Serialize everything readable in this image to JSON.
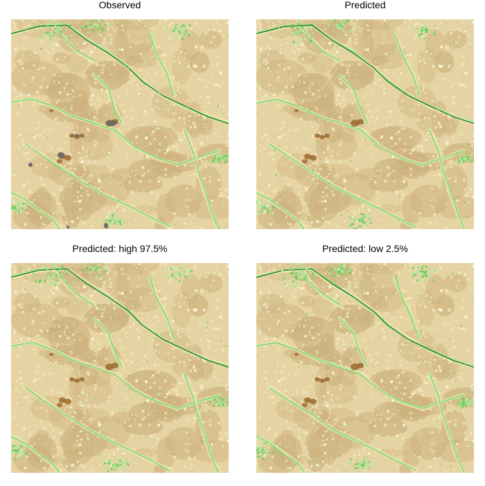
{
  "panels": [
    {
      "title": "Observed",
      "show_gray_patches": true
    },
    {
      "title": "Predicted",
      "show_gray_patches": false
    },
    {
      "title": "Predicted: high 97.5%",
      "show_gray_patches": false
    },
    {
      "title": "Predicted: low 2.5%",
      "show_gray_patches": false
    }
  ],
  "palette": {
    "tan_light": "#f3e8b8",
    "tan_mid": "#e6d3a3",
    "tan_dark": "#cdb27e",
    "brown_spot": "#9a6a2e",
    "green_light": "#b7e6a0",
    "green_mid": "#6fcf5a",
    "green_dark": "#1c7a20",
    "gray_patch": "#6b6b6b",
    "white_patch": "#fbf7df"
  }
}
